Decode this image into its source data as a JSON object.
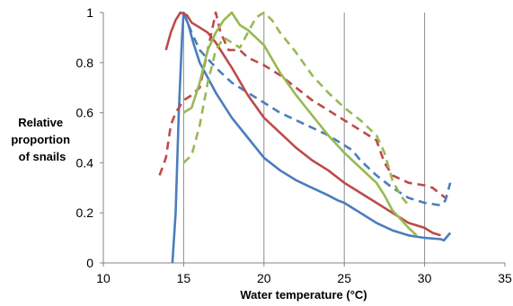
{
  "chart_data": {
    "type": "line",
    "title": "",
    "xlabel": "Water temperature (°C)",
    "ylabel_lines": [
      "Relative",
      "proportion",
      "of snails"
    ],
    "xlim": [
      10,
      35
    ],
    "ylim": [
      0,
      1
    ],
    "x_ticks": [
      10,
      15,
      20,
      25,
      30,
      35
    ],
    "x_tick_labels": [
      "10",
      "15",
      "20",
      "25",
      "30",
      "35"
    ],
    "y_ticks": [
      0,
      0.2,
      0.4,
      0.6,
      0.8,
      1
    ],
    "y_tick_labels": [
      "0",
      "0.2",
      "0.4",
      "0.6",
      "0.8",
      "1"
    ],
    "vertical_gridlines_at": [
      15,
      20,
      25,
      30
    ],
    "horizontal_grid": false,
    "legend": "none",
    "series": [
      {
        "color": "#4a7ebb",
        "style": "solid",
        "points": [
          [
            14.3,
            0
          ],
          [
            14.5,
            0.2
          ],
          [
            14.7,
            0.6
          ],
          [
            14.9,
            0.9
          ],
          [
            15.0,
            1.0
          ],
          [
            15.3,
            0.95
          ],
          [
            15.6,
            0.88
          ],
          [
            16,
            0.8
          ],
          [
            16.5,
            0.74
          ],
          [
            17,
            0.68
          ],
          [
            18,
            0.58
          ],
          [
            19,
            0.5
          ],
          [
            20,
            0.42
          ],
          [
            21,
            0.37
          ],
          [
            22,
            0.33
          ],
          [
            23,
            0.3
          ],
          [
            24,
            0.27
          ],
          [
            24.6,
            0.25
          ],
          [
            25,
            0.24
          ],
          [
            25.5,
            0.22
          ],
          [
            26,
            0.2
          ],
          [
            27,
            0.16
          ],
          [
            28,
            0.13
          ],
          [
            29,
            0.11
          ],
          [
            30,
            0.1
          ],
          [
            31,
            0.095
          ],
          [
            31.2,
            0.09
          ],
          [
            31.6,
            0.12
          ]
        ]
      },
      {
        "color": "#4a7ebb",
        "style": "dashed",
        "points": [
          [
            15,
            1.0
          ],
          [
            15.5,
            0.92
          ],
          [
            16,
            0.85
          ],
          [
            17,
            0.78
          ],
          [
            18,
            0.72
          ],
          [
            19,
            0.68
          ],
          [
            20,
            0.64
          ],
          [
            21,
            0.6
          ],
          [
            22,
            0.57
          ],
          [
            23,
            0.54
          ],
          [
            24,
            0.51
          ],
          [
            25,
            0.47
          ],
          [
            25.5,
            0.45
          ],
          [
            26,
            0.41
          ],
          [
            27,
            0.35
          ],
          [
            28,
            0.3
          ],
          [
            29,
            0.26
          ],
          [
            30,
            0.24
          ],
          [
            31,
            0.23
          ],
          [
            31.3,
            0.25
          ],
          [
            31.6,
            0.32
          ]
        ]
      },
      {
        "color": "#be4b48",
        "style": "solid",
        "points": [
          [
            13.9,
            0.85
          ],
          [
            14.2,
            0.92
          ],
          [
            14.5,
            0.97
          ],
          [
            14.8,
            1.0
          ],
          [
            15.2,
            0.99
          ],
          [
            15.5,
            0.96
          ],
          [
            16,
            0.94
          ],
          [
            16.5,
            0.92
          ],
          [
            17,
            0.88
          ],
          [
            18,
            0.78
          ],
          [
            19,
            0.67
          ],
          [
            20,
            0.58
          ],
          [
            21,
            0.52
          ],
          [
            22,
            0.46
          ],
          [
            23,
            0.41
          ],
          [
            24,
            0.37
          ],
          [
            25,
            0.32
          ],
          [
            26,
            0.28
          ],
          [
            27,
            0.24
          ],
          [
            28,
            0.2
          ],
          [
            29,
            0.16
          ],
          [
            30,
            0.14
          ],
          [
            30.5,
            0.12
          ],
          [
            31,
            0.11
          ]
        ]
      },
      {
        "color": "#be4b48",
        "style": "dashed",
        "points": [
          [
            13.5,
            0.35
          ],
          [
            13.9,
            0.42
          ],
          [
            14.2,
            0.55
          ],
          [
            14.5,
            0.6
          ],
          [
            15,
            0.65
          ],
          [
            15.5,
            0.67
          ],
          [
            16,
            0.7
          ],
          [
            16.5,
            0.85
          ],
          [
            17,
            1.0
          ],
          [
            17.3,
            0.92
          ],
          [
            17.8,
            0.85
          ],
          [
            18.5,
            0.85
          ],
          [
            19,
            0.82
          ],
          [
            20,
            0.79
          ],
          [
            21,
            0.75
          ],
          [
            22,
            0.7
          ],
          [
            23,
            0.65
          ],
          [
            24,
            0.61
          ],
          [
            25,
            0.57
          ],
          [
            26,
            0.53
          ],
          [
            27,
            0.49
          ],
          [
            27.5,
            0.4
          ],
          [
            28,
            0.35
          ],
          [
            29,
            0.32
          ],
          [
            30,
            0.31
          ],
          [
            30.5,
            0.3
          ],
          [
            31.3,
            0.26
          ]
        ]
      },
      {
        "color": "#98b954",
        "style": "solid",
        "points": [
          [
            15,
            0.6
          ],
          [
            15.5,
            0.62
          ],
          [
            16,
            0.72
          ],
          [
            16.5,
            0.85
          ],
          [
            17,
            0.92
          ],
          [
            17.5,
            0.97
          ],
          [
            18,
            1.0
          ],
          [
            18.5,
            0.95
          ],
          [
            19,
            0.93
          ],
          [
            20,
            0.87
          ],
          [
            21,
            0.76
          ],
          [
            22,
            0.67
          ],
          [
            23,
            0.59
          ],
          [
            24,
            0.51
          ],
          [
            25,
            0.44
          ],
          [
            26,
            0.38
          ],
          [
            27,
            0.32
          ],
          [
            27.5,
            0.27
          ],
          [
            28,
            0.21
          ],
          [
            29,
            0.14
          ],
          [
            29.5,
            0.11
          ]
        ]
      },
      {
        "color": "#98b954",
        "style": "dashed",
        "points": [
          [
            15,
            0.4
          ],
          [
            15.5,
            0.43
          ],
          [
            16,
            0.55
          ],
          [
            16.5,
            0.72
          ],
          [
            17,
            0.85
          ],
          [
            17.5,
            0.9
          ],
          [
            18,
            0.88
          ],
          [
            18.5,
            0.86
          ],
          [
            19,
            0.92
          ],
          [
            19.5,
            0.98
          ],
          [
            20,
            1.0
          ],
          [
            20.5,
            0.97
          ],
          [
            21,
            0.92
          ],
          [
            22,
            0.84
          ],
          [
            23,
            0.75
          ],
          [
            24,
            0.68
          ],
          [
            25,
            0.62
          ],
          [
            26,
            0.57
          ],
          [
            27,
            0.51
          ],
          [
            27.5,
            0.44
          ],
          [
            28,
            0.33
          ],
          [
            28.5,
            0.27
          ],
          [
            29,
            0.23
          ]
        ]
      }
    ]
  }
}
